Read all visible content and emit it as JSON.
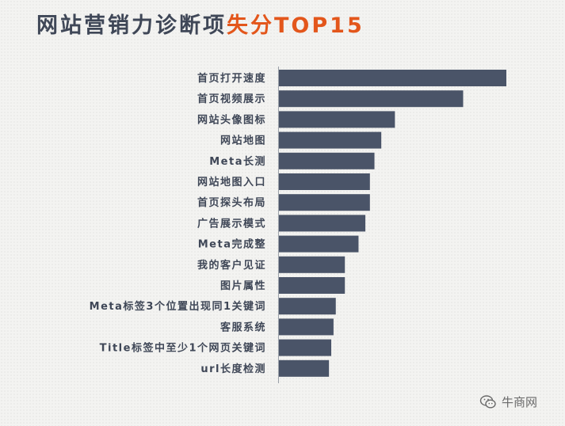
{
  "title": {
    "main": "网站营销力诊断项",
    "accent": "失分TOP15"
  },
  "colors": {
    "bar": "#4a5468",
    "title": "#3f4757",
    "accent": "#e3561b"
  },
  "watermark": {
    "text": "牛商网",
    "icon": "wechat-icon"
  },
  "chart_data": {
    "type": "bar",
    "orientation": "horizontal",
    "categories": [
      "首页打开速度",
      "首页视频展示",
      "网站头像图标",
      "网站地图",
      "Meta长测",
      "网站地图入口",
      "首页探头布局",
      "广告展示模式",
      "Meta完成整",
      "我的客户见证",
      "图片属性",
      "Meta标签3个位置出现同1关键词",
      "客服系统",
      "Title标签中至少1个网页关键词",
      "url长度检测"
    ],
    "values": [
      100,
      81,
      51,
      45,
      42,
      40,
      40,
      38,
      35,
      29,
      29,
      25,
      24,
      23,
      22
    ],
    "xlim": [
      0,
      100
    ],
    "grid": false,
    "legend": "none"
  }
}
